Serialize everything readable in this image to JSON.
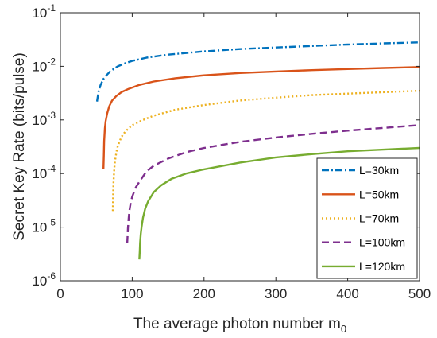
{
  "chart_data": {
    "type": "line",
    "title": "",
    "xlabel": "The average photon number m",
    "xlabel_subscript": "0",
    "ylabel": "Secret Key Rate (bits/pulse)",
    "xlim": [
      0,
      500
    ],
    "ylim": [
      1e-06,
      0.1
    ],
    "yscale": "log",
    "grid": false,
    "legend_position": "bottom-right",
    "x_ticks": [
      "0",
      "100",
      "200",
      "300",
      "400",
      "500"
    ],
    "y_ticks": [
      {
        "base": "10",
        "exp": "-6",
        "value": 1e-06
      },
      {
        "base": "10",
        "exp": "-5",
        "value": 1e-05
      },
      {
        "base": "10",
        "exp": "-4",
        "value": 0.0001
      },
      {
        "base": "10",
        "exp": "-3",
        "value": 0.001
      },
      {
        "base": "10",
        "exp": "-2",
        "value": 0.01
      },
      {
        "base": "10",
        "exp": "-1",
        "value": 0.1
      }
    ],
    "series": [
      {
        "name": "L=30km",
        "color": "#0072BD",
        "dash": "dashdot",
        "x": [
          51,
          53,
          56,
          60,
          65,
          70,
          80,
          90,
          100,
          120,
          150,
          200,
          250,
          300,
          350,
          400,
          450,
          500
        ],
        "y": [
          0.0022,
          0.0033,
          0.0045,
          0.0058,
          0.007,
          0.0082,
          0.01,
          0.0114,
          0.0126,
          0.0145,
          0.0165,
          0.019,
          0.021,
          0.0225,
          0.024,
          0.0255,
          0.0268,
          0.028
        ]
      },
      {
        "name": "L=50km",
        "color": "#D95319",
        "dash": "solid",
        "x": [
          60,
          60.5,
          61,
          62,
          63,
          65,
          68,
          72,
          78,
          85,
          95,
          110,
          130,
          160,
          200,
          250,
          300,
          350,
          400,
          450,
          500
        ],
        "y": [
          0.00012,
          0.00022,
          0.0004,
          0.0007,
          0.00095,
          0.0013,
          0.0018,
          0.0023,
          0.0028,
          0.0033,
          0.0038,
          0.0045,
          0.0052,
          0.006,
          0.0068,
          0.0075,
          0.008,
          0.0085,
          0.0089,
          0.0093,
          0.0097
        ]
      },
      {
        "name": "L=70km",
        "color": "#EDB120",
        "dash": "dotted",
        "x": [
          73,
          73.5,
          74,
          75,
          76,
          78,
          80,
          85,
          90,
          100,
          115,
          130,
          160,
          200,
          250,
          300,
          350,
          400,
          450,
          500
        ],
        "y": [
          2e-05,
          4e-05,
          7e-05,
          0.00012,
          0.00017,
          0.00025,
          0.00033,
          0.00048,
          0.0006,
          0.0008,
          0.001,
          0.0012,
          0.00155,
          0.0019,
          0.0023,
          0.0026,
          0.0029,
          0.0031,
          0.0033,
          0.0035
        ]
      },
      {
        "name": "L=100km",
        "color": "#7E2F8E",
        "dash": "dashed",
        "x": [
          93,
          93.5,
          94,
          95,
          96,
          98,
          100,
          105,
          110,
          120,
          130,
          150,
          175,
          200,
          250,
          300,
          350,
          400,
          450,
          500
        ],
        "y": [
          5e-06,
          6.5e-06,
          9.5e-06,
          1.45e-05,
          2e-05,
          2.9e-05,
          3.7e-05,
          5.5e-05,
          7e-05,
          0.00011,
          0.00014,
          0.00019,
          0.00025,
          0.0003,
          0.00039,
          0.00047,
          0.00055,
          0.00063,
          0.00071,
          0.0008
        ]
      },
      {
        "name": "L=120km",
        "color": "#77AC30",
        "dash": "solid",
        "x": [
          110,
          110.5,
          111,
          112,
          113,
          115,
          118,
          122,
          130,
          140,
          155,
          175,
          200,
          250,
          300,
          350,
          400,
          450,
          500
        ],
        "y": [
          2.5e-06,
          3.5e-06,
          5e-06,
          7.5e-06,
          1e-05,
          1.5e-05,
          2.2e-05,
          3e-05,
          4.5e-05,
          6e-05,
          8e-05,
          0.0001,
          0.00012,
          0.00016,
          0.0002,
          0.00023,
          0.00026,
          0.00028,
          0.0003
        ]
      }
    ]
  }
}
